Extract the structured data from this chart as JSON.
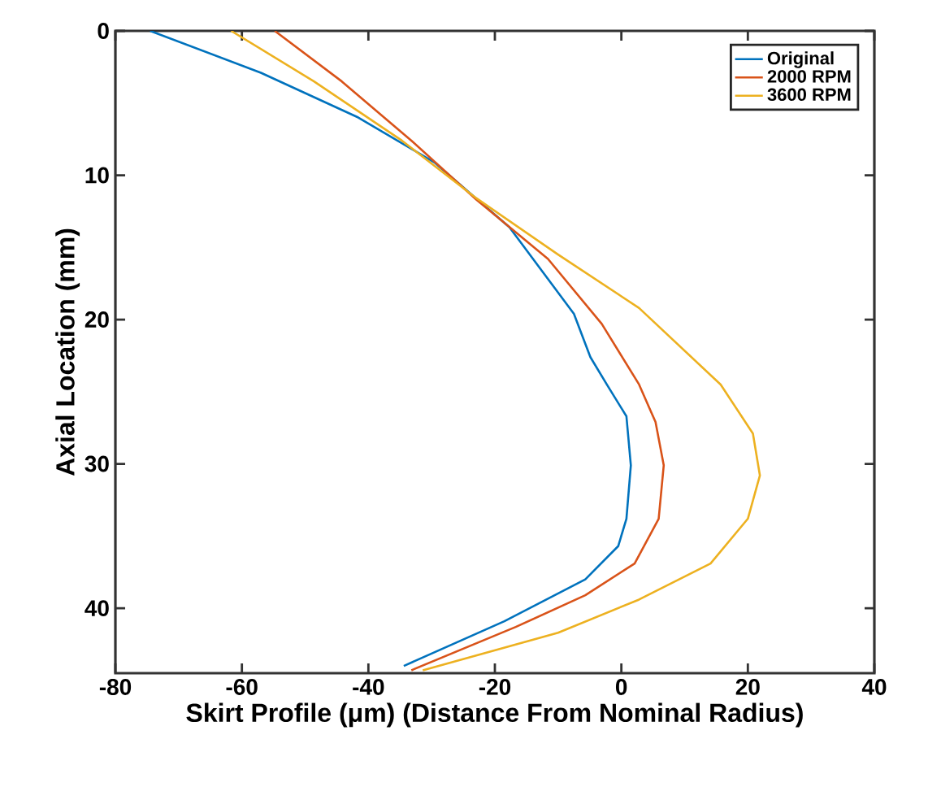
{
  "chart_data": {
    "type": "line",
    "xlabel": "Skirt Profile (μm) (Distance From Nominal Radius)",
    "ylabel": "Axial Location (mm)",
    "xlim": [
      -80,
      40
    ],
    "xticks": [
      -80,
      -60,
      -40,
      -20,
      0,
      20,
      40
    ],
    "ylim": [
      44.5,
      0
    ],
    "yticks": [
      0,
      10,
      20,
      30,
      40
    ],
    "grid": false,
    "legend": "top right",
    "marker": "none",
    "line_style": "solid",
    "series": [
      {
        "name": "Original",
        "color": "#0072bd",
        "x": [
          -74.5,
          -57,
          -41.6,
          -29.6,
          -17.7,
          -7.5,
          -4.9,
          -2.3,
          0.8,
          1.5,
          0.8,
          -0.5,
          -5.7,
          -18.5,
          -34.4
        ],
        "values": [
          0,
          2.9,
          6.0,
          9.1,
          13.6,
          19.6,
          22.6,
          24.5,
          26.7,
          30.1,
          33.8,
          35.7,
          38,
          40.9,
          44.0
        ]
      },
      {
        "name": "2000 RPM",
        "color": "#d95319",
        "x": [
          -54.8,
          -44.2,
          -33.2,
          -22.9,
          -11.6,
          -3.1,
          2.8,
          5.4,
          6.7,
          5.9,
          2.1,
          -5.7,
          -16.7,
          -33.2
        ],
        "values": [
          0,
          3.5,
          7.6,
          11.7,
          15.8,
          20.3,
          24.5,
          27.1,
          30.1,
          33.8,
          36.9,
          39.1,
          41.3,
          44.3
        ]
      },
      {
        "name": "3600 RPM",
        "color": "#edb120",
        "x": [
          -61.7,
          -48.6,
          -34.7,
          -22.9,
          -10,
          2.8,
          15.7,
          20.8,
          21.9,
          20,
          14.1,
          2.8,
          -10,
          -31.4
        ],
        "values": [
          0,
          3.5,
          7.6,
          11.6,
          15.5,
          19.2,
          24.5,
          27.9,
          30.8,
          33.8,
          36.9,
          39.4,
          41.7,
          44.3
        ]
      }
    ]
  }
}
